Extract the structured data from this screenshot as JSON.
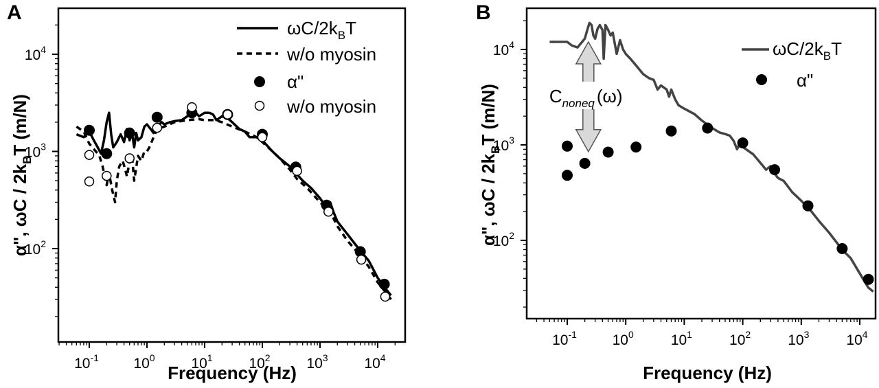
{
  "chart_data": [
    {
      "panel_label": "A",
      "type": "line",
      "xlabel": "Frequency (Hz)",
      "ylabel_parts": [
        "α\"",
        ", ωC / 2k",
        "B",
        "T (m/N)"
      ],
      "x_scale": "log",
      "y_scale": "log",
      "xlim": [
        0.05,
        20000
      ],
      "ylim": [
        20,
        30000
      ],
      "x_ticks": [
        {
          "value": 0.1,
          "base": "10",
          "exp": "-1"
        },
        {
          "value": 1,
          "base": "10",
          "exp": "0"
        },
        {
          "value": 10,
          "base": "10",
          "exp": "1"
        },
        {
          "value": 100,
          "base": "10",
          "exp": "2"
        },
        {
          "value": 1000,
          "base": "10",
          "exp": "3"
        },
        {
          "value": 10000,
          "base": "10",
          "exp": "4"
        }
      ],
      "y_ticks": [
        {
          "value": 100,
          "base": "10",
          "exp": "2"
        },
        {
          "value": 1000,
          "base": "10",
          "exp": "3"
        },
        {
          "value": 10000,
          "base": "10",
          "exp": "4"
        }
      ],
      "grid": false,
      "legend_position": "top-right",
      "legend": [
        {
          "label_main": "ωC/2k",
          "label_sub": "B",
          "label_tail": "T",
          "marker": "solid-line"
        },
        {
          "label_main": "w/o myosin",
          "label_sub": "",
          "label_tail": "",
          "marker": "dashed-line"
        },
        {
          "label_main": "α\"",
          "label_sub": "",
          "label_tail": "",
          "marker": "filled-circle"
        },
        {
          "label_main": "w/o myosin",
          "label_sub": "",
          "label_tail": "",
          "marker": "open-circle"
        }
      ],
      "series": [
        {
          "name": "ωC/2kBT",
          "kind": "line",
          "style": "solid",
          "color": "#000000",
          "points": [
            [
              0.06,
              1500
            ],
            [
              0.08,
              1400
            ],
            [
              0.1,
              1600
            ],
            [
              0.12,
              1300
            ],
            [
              0.14,
              1100
            ],
            [
              0.16,
              950
            ],
            [
              0.18,
              1300
            ],
            [
              0.2,
              2000
            ],
            [
              0.22,
              2500
            ],
            [
              0.24,
              1500
            ],
            [
              0.26,
              1100
            ],
            [
              0.3,
              1250
            ],
            [
              0.35,
              1500
            ],
            [
              0.4,
              1250
            ],
            [
              0.45,
              1700
            ],
            [
              0.5,
              1300
            ],
            [
              0.55,
              1550
            ],
            [
              0.6,
              1100
            ],
            [
              0.65,
              1550
            ],
            [
              0.7,
              1300
            ],
            [
              0.8,
              1400
            ],
            [
              0.9,
              1800
            ],
            [
              1.0,
              1900
            ],
            [
              1.2,
              1650
            ],
            [
              1.3,
              1550
            ],
            [
              1.5,
              1800
            ],
            [
              1.8,
              2000
            ],
            [
              2.0,
              1900
            ],
            [
              2.5,
              2000
            ],
            [
              3,
              2050
            ],
            [
              4,
              2100
            ],
            [
              5,
              2300
            ],
            [
              6,
              2600
            ],
            [
              7,
              2500
            ],
            [
              8,
              2300
            ],
            [
              10,
              2500
            ],
            [
              12,
              2500
            ],
            [
              14,
              2400
            ],
            [
              16,
              2100
            ],
            [
              20,
              2300
            ],
            [
              25,
              2200
            ],
            [
              30,
              2000
            ],
            [
              40,
              1700
            ],
            [
              50,
              1600
            ],
            [
              60,
              1400
            ],
            [
              80,
              1400
            ],
            [
              100,
              1300
            ],
            [
              150,
              1000
            ],
            [
              200,
              850
            ],
            [
              300,
              700
            ],
            [
              400,
              580
            ],
            [
              500,
              500
            ],
            [
              700,
              420
            ],
            [
              1000,
              330
            ],
            [
              1200,
              280
            ],
            [
              1400,
              270
            ],
            [
              1500,
              300
            ],
            [
              1700,
              240
            ],
            [
              2000,
              190
            ],
            [
              3000,
              140
            ],
            [
              5000,
              95
            ],
            [
              7000,
              75
            ],
            [
              10000,
              50
            ],
            [
              14000,
              38
            ],
            [
              17000,
              33
            ]
          ]
        },
        {
          "name": "w/o myosin (line)",
          "kind": "line",
          "style": "dashed",
          "color": "#000000",
          "points": [
            [
              0.06,
              1800
            ],
            [
              0.08,
              1600
            ],
            [
              0.1,
              1200
            ],
            [
              0.13,
              1000
            ],
            [
              0.15,
              900
            ],
            [
              0.17,
              700
            ],
            [
              0.2,
              450
            ],
            [
              0.22,
              600
            ],
            [
              0.25,
              400
            ],
            [
              0.28,
              300
            ],
            [
              0.3,
              500
            ],
            [
              0.33,
              700
            ],
            [
              0.38,
              800
            ],
            [
              0.42,
              650
            ],
            [
              0.45,
              550
            ],
            [
              0.5,
              800
            ],
            [
              0.55,
              900
            ],
            [
              0.6,
              500
            ],
            [
              0.7,
              900
            ],
            [
              0.8,
              800
            ],
            [
              0.9,
              1000
            ],
            [
              1,
              1000
            ],
            [
              1.1,
              1100
            ],
            [
              1.3,
              1400
            ],
            [
              1.5,
              1700
            ],
            [
              2,
              1800
            ],
            [
              3,
              2000
            ],
            [
              5,
              2100
            ],
            [
              8,
              2150
            ],
            [
              10,
              2100
            ],
            [
              15,
              2100
            ],
            [
              20,
              2000
            ],
            [
              30,
              1800
            ],
            [
              50,
              1600
            ],
            [
              80,
              1400
            ],
            [
              100,
              1250
            ],
            [
              150,
              1000
            ],
            [
              200,
              850
            ],
            [
              300,
              650
            ],
            [
              400,
              520
            ],
            [
              600,
              420
            ],
            [
              1000,
              300
            ],
            [
              1500,
              240
            ],
            [
              2000,
              170
            ],
            [
              3000,
              120
            ],
            [
              5000,
              85
            ],
            [
              7000,
              65
            ],
            [
              10000,
              45
            ],
            [
              14000,
              35
            ],
            [
              17000,
              30
            ]
          ]
        },
        {
          "name": "α\"",
          "kind": "scatter",
          "marker": "filled",
          "color": "#000000",
          "points": [
            [
              0.1,
              1650
            ],
            [
              0.2,
              950
            ],
            [
              0.5,
              1550
            ],
            [
              1.5,
              2250
            ],
            [
              6,
              2500
            ],
            [
              25,
              2400
            ],
            [
              100,
              1500
            ],
            [
              380,
              690
            ],
            [
              1300,
              280
            ],
            [
              5000,
              93
            ],
            [
              13000,
              43
            ]
          ]
        },
        {
          "name": "w/o myosin (points)",
          "kind": "scatter",
          "marker": "open",
          "color": "#000000",
          "points": [
            [
              0.1,
              920
            ],
            [
              0.1,
              490
            ],
            [
              0.2,
              560
            ],
            [
              0.5,
              850
            ],
            [
              1.5,
              1750
            ],
            [
              6,
              2850
            ],
            [
              25,
              2400
            ],
            [
              100,
              1400
            ],
            [
              400,
              630
            ],
            [
              1400,
              240
            ],
            [
              5200,
              77
            ],
            [
              13500,
              32
            ]
          ]
        }
      ]
    },
    {
      "panel_label": "B",
      "type": "line",
      "xlabel": "Frequency (Hz)",
      "ylabel_parts": [
        "α\"",
        ", ωC / 2k",
        "B",
        "T (m/N)"
      ],
      "x_scale": "log",
      "y_scale": "log",
      "xlim": [
        0.05,
        20000
      ],
      "ylim": [
        20,
        30000
      ],
      "x_ticks": [
        {
          "value": 0.1,
          "base": "10",
          "exp": "-1"
        },
        {
          "value": 1,
          "base": "10",
          "exp": "0"
        },
        {
          "value": 10,
          "base": "10",
          "exp": "1"
        },
        {
          "value": 100,
          "base": "10",
          "exp": "2"
        },
        {
          "value": 1000,
          "base": "10",
          "exp": "3"
        },
        {
          "value": 10000,
          "base": "10",
          "exp": "4"
        }
      ],
      "y_ticks": [
        {
          "value": 100,
          "base": "10",
          "exp": "2"
        },
        {
          "value": 1000,
          "base": "10",
          "exp": "3"
        },
        {
          "value": 10000,
          "base": "10",
          "exp": "4"
        }
      ],
      "grid": false,
      "legend_position": "top-right",
      "legend": [
        {
          "label_main": "ωC/2k",
          "label_sub": "B",
          "label_tail": "T",
          "marker": "solid-line-gray"
        },
        {
          "label_main": "α\"",
          "label_sub": "",
          "label_tail": "",
          "marker": "filled-circle"
        }
      ],
      "annotation": {
        "text_main": "C",
        "text_sub": "noneq",
        "text_tail": "(ω)",
        "arrow": "double-headed",
        "arrow_x": 0.23,
        "arrow_top": 12000,
        "arrow_bottom": 850
      },
      "series": [
        {
          "name": "ωC/2kBT",
          "kind": "line",
          "style": "solid",
          "color": "#444444",
          "points": [
            [
              0.05,
              12000
            ],
            [
              0.1,
              12000
            ],
            [
              0.12,
              11000
            ],
            [
              0.15,
              10500
            ],
            [
              0.18,
              12000
            ],
            [
              0.2,
              13000
            ],
            [
              0.22,
              16000
            ],
            [
              0.24,
              19000
            ],
            [
              0.26,
              18000
            ],
            [
              0.28,
              14000
            ],
            [
              0.3,
              13000
            ],
            [
              0.33,
              16500
            ],
            [
              0.36,
              18000
            ],
            [
              0.4,
              16000
            ],
            [
              0.42,
              8000
            ],
            [
              0.45,
              18000
            ],
            [
              0.5,
              16000
            ],
            [
              0.55,
              14000
            ],
            [
              0.6,
              15000
            ],
            [
              0.7,
              9000
            ],
            [
              0.8,
              12500
            ],
            [
              0.9,
              10000
            ],
            [
              1.0,
              9000
            ],
            [
              1.2,
              8000
            ],
            [
              1.5,
              6800
            ],
            [
              2,
              5500
            ],
            [
              2.5,
              5000
            ],
            [
              3,
              4800
            ],
            [
              3.5,
              3800
            ],
            [
              4,
              4200
            ],
            [
              5,
              3800
            ],
            [
              5.5,
              3200
            ],
            [
              6,
              3800
            ],
            [
              7,
              3000
            ],
            [
              8,
              2600
            ],
            [
              10,
              2400
            ],
            [
              15,
              2100
            ],
            [
              20,
              1800
            ],
            [
              30,
              1500
            ],
            [
              40,
              1350
            ],
            [
              50,
              1300
            ],
            [
              60,
              1250
            ],
            [
              70,
              1100
            ],
            [
              80,
              900
            ],
            [
              90,
              1050
            ],
            [
              100,
              950
            ],
            [
              150,
              800
            ],
            [
              200,
              650
            ],
            [
              250,
              550
            ],
            [
              300,
              600
            ],
            [
              350,
              500
            ],
            [
              400,
              450
            ],
            [
              500,
              420
            ],
            [
              700,
              320
            ],
            [
              1000,
              260
            ],
            [
              1500,
              200
            ],
            [
              2000,
              160
            ],
            [
              3000,
              120
            ],
            [
              5000,
              80
            ],
            [
              7000,
              65
            ],
            [
              10000,
              45
            ],
            [
              14000,
              32
            ],
            [
              17000,
              29
            ]
          ]
        },
        {
          "name": "α\"",
          "kind": "scatter",
          "marker": "filled",
          "color": "#000000",
          "points": [
            [
              0.1,
              970
            ],
            [
              0.1,
              480
            ],
            [
              0.2,
              640
            ],
            [
              0.5,
              840
            ],
            [
              1.5,
              950
            ],
            [
              6,
              1400
            ],
            [
              25,
              1500
            ],
            [
              100,
              1050
            ],
            [
              350,
              550
            ],
            [
              1300,
              230
            ],
            [
              5000,
              82
            ],
            [
              14000,
              39
            ]
          ]
        }
      ]
    }
  ]
}
